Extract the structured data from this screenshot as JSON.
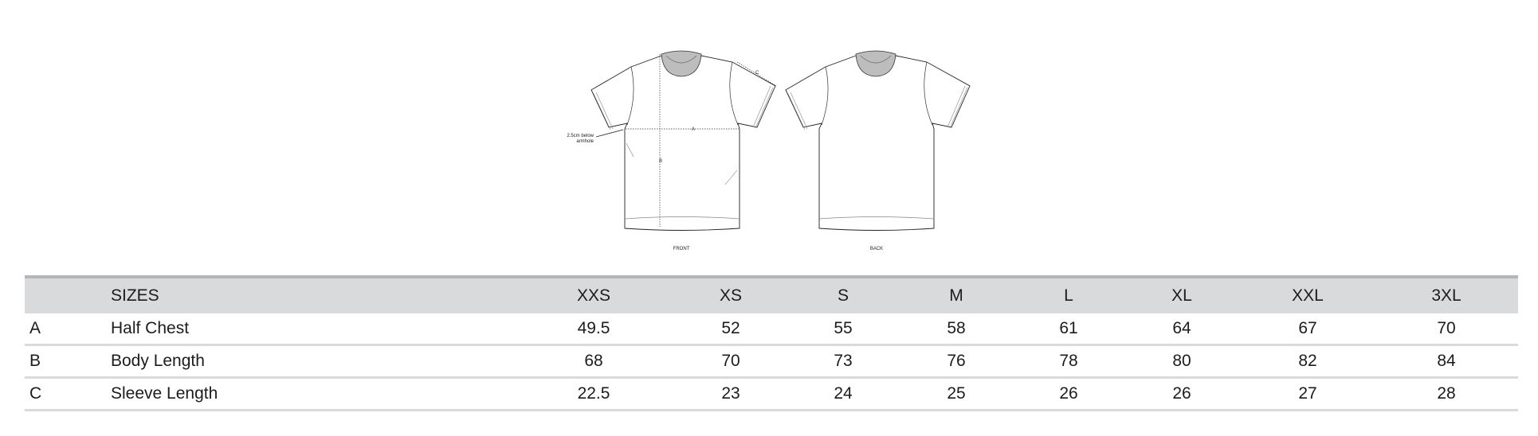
{
  "diagram": {
    "front_label": "FRONT",
    "back_label": "BACK",
    "measure_a": "A",
    "measure_b": "B",
    "measure_c": "C",
    "note_line1": "2.5cm below",
    "note_line2": "armhole"
  },
  "table": {
    "header": {
      "label": "SIZES",
      "sizes": [
        "XXS",
        "XS",
        "S",
        "M",
        "L",
        "XL",
        "XXL",
        "3XL"
      ]
    },
    "rows": [
      {
        "key": "A",
        "label": "Half Chest",
        "values": [
          "49.5",
          "52",
          "55",
          "58",
          "61",
          "64",
          "67",
          "70"
        ]
      },
      {
        "key": "B",
        "label": "Body Length",
        "values": [
          "68",
          "70",
          "73",
          "76",
          "78",
          "80",
          "82",
          "84"
        ]
      },
      {
        "key": "C",
        "label": "Sleeve Length",
        "values": [
          "22.5",
          "23",
          "24",
          "25",
          "26",
          "26",
          "27",
          "28"
        ]
      }
    ],
    "colors": {
      "header_bg": "#d9dadc",
      "top_border": "#b4b6b9",
      "row_divider": "#d9dadc"
    }
  }
}
